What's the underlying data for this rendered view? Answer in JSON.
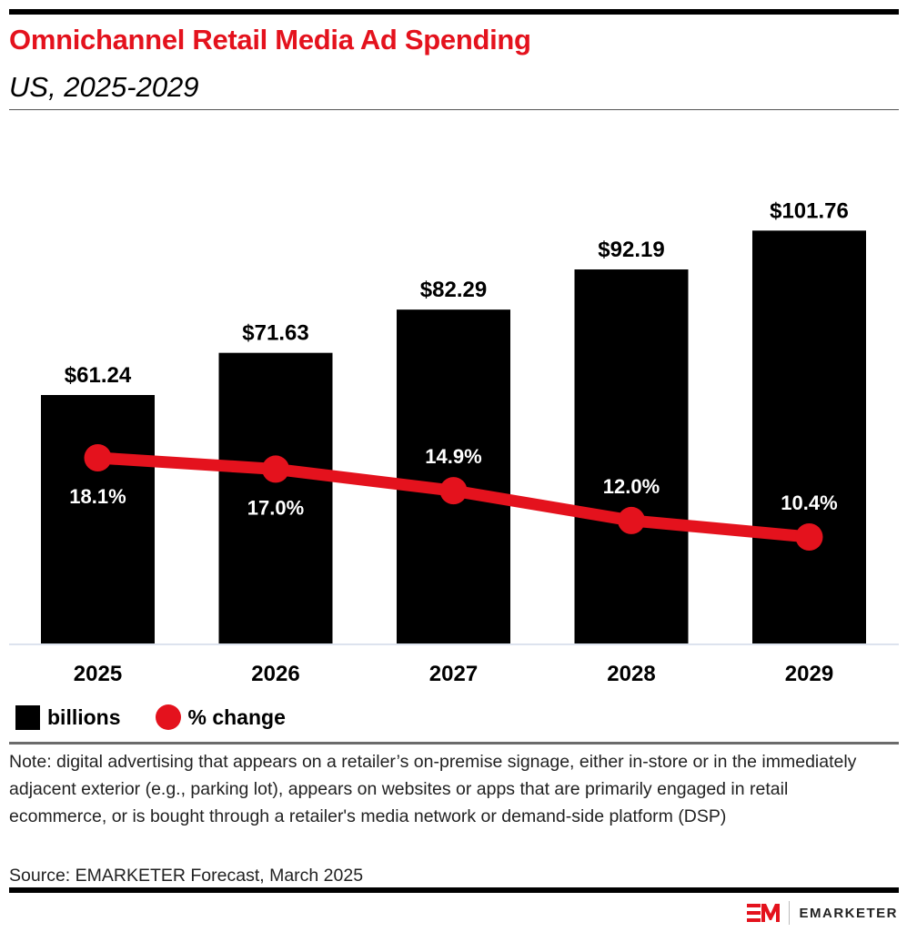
{
  "header": {
    "title": "Omnichannel Retail Media Ad Spending",
    "subtitle": "US, 2025-2029"
  },
  "colors": {
    "title": "#e4121d",
    "bars": "#000000",
    "line": "#e4121d"
  },
  "chart_data": {
    "type": "bar",
    "title": "Omnichannel Retail Media Ad Spending",
    "subtitle": "US, 2025-2029",
    "categories": [
      "2025",
      "2026",
      "2027",
      "2028",
      "2029"
    ],
    "series": [
      {
        "name": "billions",
        "type": "bar",
        "values": [
          61.24,
          71.63,
          82.29,
          92.19,
          101.76
        ],
        "labels": [
          "$61.24",
          "$71.63",
          "$82.29",
          "$92.19",
          "$101.76"
        ]
      },
      {
        "name": "% change",
        "type": "line",
        "values": [
          18.1,
          17.0,
          14.9,
          12.0,
          10.4
        ],
        "labels": [
          "18.1%",
          "17.0%",
          "14.9%",
          "12.0%",
          "10.4%"
        ]
      }
    ],
    "xlabel": "",
    "ylabel": "",
    "ylim": [
      0,
      130
    ],
    "grid": false,
    "legend": "bottom-left"
  },
  "legend": {
    "bars_label": "billions",
    "line_label": "% change"
  },
  "footer": {
    "note": "Note: digital advertising that appears on a retailer’s on-premise signage, either in-store or in the immediately adjacent exterior (e.g., parking lot), appears on websites or apps that are primarily engaged in retail ecommerce, or is bought through a retailer's media network or demand-side platform (DSP)",
    "source": "Source: EMARKETER Forecast, March 2025",
    "brand": "EMARKETER"
  }
}
